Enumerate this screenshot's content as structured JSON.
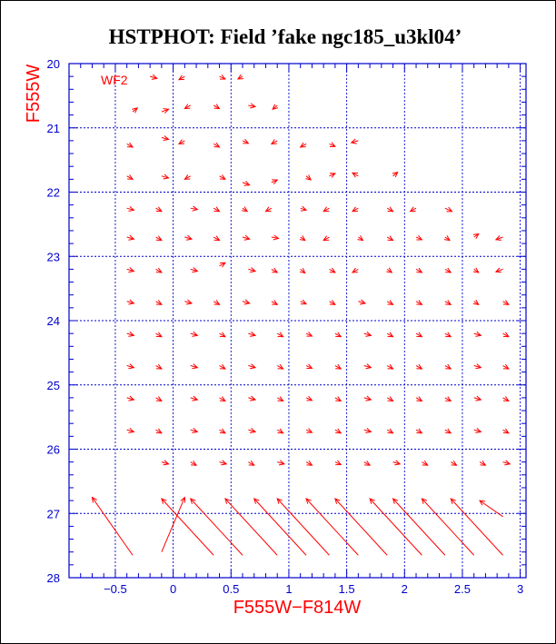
{
  "chart_data": {
    "type": "scatter",
    "title": "HSTPHOT: Field ’fake ngc185_u3kl04’",
    "xlabel": "F555W−F814W",
    "ylabel": "F555W",
    "panel_label": "WF2",
    "xlim": [
      -0.9,
      3.05
    ],
    "ylim": [
      28,
      20
    ],
    "xticks": [
      -0.5,
      0,
      0.5,
      1,
      1.5,
      2,
      2.5,
      3
    ],
    "xtick_labels": [
      "−0.5",
      "0",
      "0.5",
      "1",
      "1.5",
      "2",
      "2.5",
      "3"
    ],
    "yticks": [
      20,
      21,
      22,
      23,
      24,
      25,
      26,
      27,
      28
    ],
    "ytick_labels": [
      "20",
      "21",
      "22",
      "23",
      "24",
      "25",
      "26",
      "27",
      "28"
    ],
    "grid_x": [
      -0.5,
      0,
      0.5,
      1,
      1.5,
      2,
      2.5,
      3
    ],
    "grid_y": [
      21,
      22,
      23,
      24,
      25,
      26,
      27
    ],
    "grid": true,
    "colors": {
      "axes": "#0000cc",
      "data": "#ff0000",
      "title": "#000000",
      "background": "#ffffff"
    },
    "vectors": [
      {
        "x": -0.2,
        "y": 20.2,
        "dx": 0.06,
        "dy": 0.03
      },
      {
        "x": 0.1,
        "y": 20.2,
        "dx": -0.05,
        "dy": 0.05
      },
      {
        "x": 0.4,
        "y": 20.2,
        "dx": 0.05,
        "dy": 0.04
      },
      {
        "x": 0.6,
        "y": 20.2,
        "dx": -0.04,
        "dy": 0.04
      },
      {
        "x": -0.35,
        "y": 20.75,
        "dx": 0.04,
        "dy": -0.06
      },
      {
        "x": -0.1,
        "y": 20.75,
        "dx": 0.06,
        "dy": -0.04
      },
      {
        "x": 0.15,
        "y": 20.65,
        "dx": -0.05,
        "dy": 0.05
      },
      {
        "x": 0.35,
        "y": 20.65,
        "dx": 0.05,
        "dy": 0.05
      },
      {
        "x": 0.65,
        "y": 20.65,
        "dx": 0.06,
        "dy": 0.02
      },
      {
        "x": 0.9,
        "y": 20.65,
        "dx": -0.04,
        "dy": 0.06
      },
      {
        "x": -0.4,
        "y": 21.25,
        "dx": 0.05,
        "dy": 0.05
      },
      {
        "x": -0.1,
        "y": 21.15,
        "dx": 0.06,
        "dy": 0.03
      },
      {
        "x": 0.1,
        "y": 21.2,
        "dx": -0.05,
        "dy": 0.05
      },
      {
        "x": 0.35,
        "y": 21.25,
        "dx": 0.05,
        "dy": 0.05
      },
      {
        "x": 0.6,
        "y": 21.2,
        "dx": 0.05,
        "dy": 0.04
      },
      {
        "x": 0.9,
        "y": 21.2,
        "dx": -0.05,
        "dy": 0.05
      },
      {
        "x": 1.15,
        "y": 21.25,
        "dx": -0.05,
        "dy": 0.05
      },
      {
        "x": 1.35,
        "y": 21.25,
        "dx": 0.05,
        "dy": 0.04
      },
      {
        "x": 1.6,
        "y": 21.2,
        "dx": -0.06,
        "dy": 0.03
      },
      {
        "x": -0.4,
        "y": 21.75,
        "dx": 0.05,
        "dy": 0.05
      },
      {
        "x": -0.1,
        "y": 21.75,
        "dx": 0.06,
        "dy": 0.03
      },
      {
        "x": 0.15,
        "y": 21.75,
        "dx": -0.05,
        "dy": 0.05
      },
      {
        "x": 0.4,
        "y": 21.75,
        "dx": 0.05,
        "dy": 0.05
      },
      {
        "x": 0.6,
        "y": 21.85,
        "dx": 0.06,
        "dy": 0.04
      },
      {
        "x": 0.85,
        "y": 21.85,
        "dx": 0.05,
        "dy": -0.04
      },
      {
        "x": 1.15,
        "y": 21.75,
        "dx": 0.04,
        "dy": 0.06
      },
      {
        "x": 1.35,
        "y": 21.75,
        "dx": 0.05,
        "dy": -0.04
      },
      {
        "x": 1.6,
        "y": 21.75,
        "dx": -0.05,
        "dy": -0.05
      },
      {
        "x": 1.9,
        "y": 21.75,
        "dx": 0.04,
        "dy": -0.06
      },
      {
        "x": -0.4,
        "y": 22.25,
        "dx": 0.06,
        "dy": 0.03
      },
      {
        "x": -0.15,
        "y": 22.25,
        "dx": 0.05,
        "dy": 0.05
      },
      {
        "x": 0.15,
        "y": 22.25,
        "dx": 0.06,
        "dy": 0.02
      },
      {
        "x": 0.35,
        "y": 22.25,
        "dx": 0.05,
        "dy": 0.05
      },
      {
        "x": 0.6,
        "y": 22.25,
        "dx": 0.04,
        "dy": 0.05
      },
      {
        "x": 0.85,
        "y": 22.25,
        "dx": -0.05,
        "dy": 0.05
      },
      {
        "x": 1.1,
        "y": 22.25,
        "dx": 0.05,
        "dy": 0.03
      },
      {
        "x": 1.35,
        "y": 22.25,
        "dx": -0.05,
        "dy": 0.05
      },
      {
        "x": 1.6,
        "y": 22.25,
        "dx": -0.05,
        "dy": 0.05
      },
      {
        "x": 1.85,
        "y": 22.25,
        "dx": 0.05,
        "dy": 0.05
      },
      {
        "x": 2.1,
        "y": 22.25,
        "dx": -0.05,
        "dy": 0.05
      },
      {
        "x": 2.35,
        "y": 22.25,
        "dx": 0.06,
        "dy": 0.05
      },
      {
        "x": -0.4,
        "y": 22.7,
        "dx": 0.06,
        "dy": 0.03
      },
      {
        "x": -0.15,
        "y": 22.7,
        "dx": 0.05,
        "dy": 0.05
      },
      {
        "x": 0.1,
        "y": 22.7,
        "dx": 0.06,
        "dy": 0.03
      },
      {
        "x": 0.35,
        "y": 22.7,
        "dx": 0.05,
        "dy": 0.05
      },
      {
        "x": 0.6,
        "y": 22.7,
        "dx": 0.06,
        "dy": 0.03
      },
      {
        "x": 0.85,
        "y": 22.7,
        "dx": 0.06,
        "dy": 0.02
      },
      {
        "x": 1.1,
        "y": 22.7,
        "dx": 0.04,
        "dy": 0.05
      },
      {
        "x": 1.35,
        "y": 22.7,
        "dx": -0.05,
        "dy": 0.05
      },
      {
        "x": 1.6,
        "y": 22.7,
        "dx": 0.04,
        "dy": 0.05
      },
      {
        "x": 1.85,
        "y": 22.7,
        "dx": 0.05,
        "dy": 0.05
      },
      {
        "x": 2.1,
        "y": 22.7,
        "dx": 0.05,
        "dy": 0.04
      },
      {
        "x": 2.35,
        "y": 22.7,
        "dx": 0.04,
        "dy": 0.05
      },
      {
        "x": 2.6,
        "y": 22.7,
        "dx": 0.04,
        "dy": -0.05
      },
      {
        "x": 2.85,
        "y": 22.7,
        "dx": -0.06,
        "dy": 0.04
      },
      {
        "x": -0.4,
        "y": 23.2,
        "dx": 0.06,
        "dy": 0.03
      },
      {
        "x": -0.15,
        "y": 23.2,
        "dx": 0.05,
        "dy": 0.05
      },
      {
        "x": 0.15,
        "y": 23.2,
        "dx": 0.06,
        "dy": 0.03
      },
      {
        "x": 0.4,
        "y": 23.15,
        "dx": 0.05,
        "dy": -0.05
      },
      {
        "x": 0.65,
        "y": 23.2,
        "dx": 0.06,
        "dy": 0.03
      },
      {
        "x": 0.85,
        "y": 23.2,
        "dx": 0.05,
        "dy": 0.05
      },
      {
        "x": 1.1,
        "y": 23.2,
        "dx": 0.04,
        "dy": 0.06
      },
      {
        "x": 1.35,
        "y": 23.2,
        "dx": 0.05,
        "dy": 0.05
      },
      {
        "x": 1.6,
        "y": 23.2,
        "dx": -0.05,
        "dy": 0.05
      },
      {
        "x": 1.85,
        "y": 23.2,
        "dx": 0.04,
        "dy": 0.05
      },
      {
        "x": 2.1,
        "y": 23.2,
        "dx": 0.05,
        "dy": 0.05
      },
      {
        "x": 2.35,
        "y": 23.2,
        "dx": 0.05,
        "dy": 0.05
      },
      {
        "x": 2.6,
        "y": 23.2,
        "dx": 0.04,
        "dy": 0.05
      },
      {
        "x": 2.85,
        "y": 23.2,
        "dx": -0.06,
        "dy": 0.04
      },
      {
        "x": -0.4,
        "y": 23.7,
        "dx": 0.06,
        "dy": 0.03
      },
      {
        "x": -0.15,
        "y": 23.7,
        "dx": 0.05,
        "dy": 0.05
      },
      {
        "x": 0.1,
        "y": 23.7,
        "dx": 0.06,
        "dy": 0.03
      },
      {
        "x": 0.35,
        "y": 23.7,
        "dx": 0.05,
        "dy": 0.05
      },
      {
        "x": 0.6,
        "y": 23.7,
        "dx": 0.06,
        "dy": 0.03
      },
      {
        "x": 0.85,
        "y": 23.7,
        "dx": 0.05,
        "dy": 0.05
      },
      {
        "x": 1.1,
        "y": 23.7,
        "dx": 0.05,
        "dy": 0.04
      },
      {
        "x": 1.35,
        "y": 23.7,
        "dx": 0.05,
        "dy": 0.05
      },
      {
        "x": 1.6,
        "y": 23.7,
        "dx": 0.06,
        "dy": 0.03
      },
      {
        "x": 1.85,
        "y": 23.7,
        "dx": 0.05,
        "dy": 0.05
      },
      {
        "x": 2.1,
        "y": 23.7,
        "dx": 0.05,
        "dy": 0.05
      },
      {
        "x": 2.35,
        "y": 23.7,
        "dx": 0.05,
        "dy": 0.05
      },
      {
        "x": 2.6,
        "y": 23.7,
        "dx": 0.04,
        "dy": 0.05
      },
      {
        "x": 2.85,
        "y": 23.7,
        "dx": 0.05,
        "dy": 0.05
      },
      {
        "x": -0.4,
        "y": 24.2,
        "dx": 0.06,
        "dy": 0.03
      },
      {
        "x": -0.15,
        "y": 24.2,
        "dx": 0.05,
        "dy": 0.05
      },
      {
        "x": 0.15,
        "y": 24.2,
        "dx": 0.06,
        "dy": 0.03
      },
      {
        "x": 0.4,
        "y": 24.2,
        "dx": 0.05,
        "dy": 0.05
      },
      {
        "x": 0.65,
        "y": 24.2,
        "dx": 0.06,
        "dy": 0.03
      },
      {
        "x": 0.9,
        "y": 24.2,
        "dx": 0.05,
        "dy": 0.05
      },
      {
        "x": 1.15,
        "y": 24.2,
        "dx": 0.05,
        "dy": 0.04
      },
      {
        "x": 1.4,
        "y": 24.2,
        "dx": 0.05,
        "dy": 0.05
      },
      {
        "x": 1.65,
        "y": 24.2,
        "dx": 0.06,
        "dy": 0.03
      },
      {
        "x": 1.85,
        "y": 24.2,
        "dx": 0.05,
        "dy": 0.05
      },
      {
        "x": 2.1,
        "y": 24.2,
        "dx": 0.05,
        "dy": 0.05
      },
      {
        "x": 2.35,
        "y": 24.2,
        "dx": 0.05,
        "dy": 0.05
      },
      {
        "x": 2.6,
        "y": 24.2,
        "dx": 0.06,
        "dy": 0.03
      },
      {
        "x": 2.85,
        "y": 24.2,
        "dx": 0.05,
        "dy": 0.05
      },
      {
        "x": -0.4,
        "y": 24.7,
        "dx": 0.06,
        "dy": 0.03
      },
      {
        "x": -0.15,
        "y": 24.7,
        "dx": 0.05,
        "dy": 0.05
      },
      {
        "x": 0.15,
        "y": 24.7,
        "dx": 0.06,
        "dy": 0.03
      },
      {
        "x": 0.4,
        "y": 24.7,
        "dx": 0.05,
        "dy": 0.05
      },
      {
        "x": 0.65,
        "y": 24.7,
        "dx": 0.06,
        "dy": 0.03
      },
      {
        "x": 0.9,
        "y": 24.7,
        "dx": 0.05,
        "dy": 0.05
      },
      {
        "x": 1.15,
        "y": 24.7,
        "dx": 0.05,
        "dy": 0.04
      },
      {
        "x": 1.4,
        "y": 24.7,
        "dx": 0.05,
        "dy": 0.05
      },
      {
        "x": 1.65,
        "y": 24.7,
        "dx": 0.06,
        "dy": 0.03
      },
      {
        "x": 1.85,
        "y": 24.7,
        "dx": 0.05,
        "dy": 0.05
      },
      {
        "x": 2.1,
        "y": 24.7,
        "dx": 0.05,
        "dy": 0.05
      },
      {
        "x": 2.35,
        "y": 24.7,
        "dx": 0.05,
        "dy": 0.05
      },
      {
        "x": 2.6,
        "y": 24.7,
        "dx": 0.06,
        "dy": 0.03
      },
      {
        "x": 2.85,
        "y": 24.7,
        "dx": 0.05,
        "dy": 0.05
      },
      {
        "x": -0.4,
        "y": 25.2,
        "dx": 0.06,
        "dy": 0.03
      },
      {
        "x": -0.15,
        "y": 25.2,
        "dx": 0.05,
        "dy": 0.05
      },
      {
        "x": 0.15,
        "y": 25.2,
        "dx": 0.06,
        "dy": 0.03
      },
      {
        "x": 0.4,
        "y": 25.2,
        "dx": 0.05,
        "dy": 0.05
      },
      {
        "x": 0.65,
        "y": 25.2,
        "dx": 0.06,
        "dy": 0.03
      },
      {
        "x": 0.9,
        "y": 25.2,
        "dx": 0.05,
        "dy": 0.05
      },
      {
        "x": 1.15,
        "y": 25.2,
        "dx": 0.05,
        "dy": 0.04
      },
      {
        "x": 1.4,
        "y": 25.2,
        "dx": 0.05,
        "dy": 0.05
      },
      {
        "x": 1.65,
        "y": 25.2,
        "dx": 0.06,
        "dy": 0.03
      },
      {
        "x": 1.85,
        "y": 25.2,
        "dx": 0.05,
        "dy": 0.05
      },
      {
        "x": 2.1,
        "y": 25.2,
        "dx": 0.05,
        "dy": 0.05
      },
      {
        "x": 2.35,
        "y": 25.2,
        "dx": 0.05,
        "dy": 0.05
      },
      {
        "x": 2.6,
        "y": 25.2,
        "dx": 0.06,
        "dy": 0.03
      },
      {
        "x": 2.85,
        "y": 25.2,
        "dx": 0.05,
        "dy": 0.05
      },
      {
        "x": -0.4,
        "y": 25.7,
        "dx": 0.06,
        "dy": 0.03
      },
      {
        "x": -0.15,
        "y": 25.7,
        "dx": 0.05,
        "dy": 0.05
      },
      {
        "x": 0.15,
        "y": 25.7,
        "dx": 0.06,
        "dy": 0.03
      },
      {
        "x": 0.4,
        "y": 25.7,
        "dx": 0.05,
        "dy": 0.05
      },
      {
        "x": 0.65,
        "y": 25.7,
        "dx": 0.06,
        "dy": 0.03
      },
      {
        "x": 0.9,
        "y": 25.7,
        "dx": 0.05,
        "dy": 0.05
      },
      {
        "x": 1.15,
        "y": 25.7,
        "dx": 0.05,
        "dy": 0.04
      },
      {
        "x": 1.4,
        "y": 25.7,
        "dx": 0.05,
        "dy": 0.05
      },
      {
        "x": 1.65,
        "y": 25.7,
        "dx": 0.06,
        "dy": 0.03
      },
      {
        "x": 1.85,
        "y": 25.7,
        "dx": 0.05,
        "dy": 0.05
      },
      {
        "x": 2.1,
        "y": 25.7,
        "dx": 0.05,
        "dy": 0.05
      },
      {
        "x": 2.35,
        "y": 25.7,
        "dx": 0.05,
        "dy": 0.05
      },
      {
        "x": 2.6,
        "y": 25.7,
        "dx": 0.06,
        "dy": 0.03
      },
      {
        "x": 2.85,
        "y": 25.7,
        "dx": 0.05,
        "dy": 0.05
      },
      {
        "x": -0.1,
        "y": 26.2,
        "dx": 0.06,
        "dy": 0.03
      },
      {
        "x": 0.15,
        "y": 26.2,
        "dx": 0.05,
        "dy": 0.05
      },
      {
        "x": 0.4,
        "y": 26.2,
        "dx": 0.06,
        "dy": 0.03
      },
      {
        "x": 0.65,
        "y": 26.2,
        "dx": 0.05,
        "dy": 0.05
      },
      {
        "x": 0.9,
        "y": 26.2,
        "dx": 0.06,
        "dy": 0.03
      },
      {
        "x": 1.15,
        "y": 26.2,
        "dx": 0.05,
        "dy": 0.05
      },
      {
        "x": 1.4,
        "y": 26.2,
        "dx": 0.05,
        "dy": 0.04
      },
      {
        "x": 1.65,
        "y": 26.2,
        "dx": 0.05,
        "dy": 0.05
      },
      {
        "x": 1.9,
        "y": 26.2,
        "dx": 0.06,
        "dy": 0.03
      },
      {
        "x": 2.15,
        "y": 26.2,
        "dx": 0.05,
        "dy": 0.05
      },
      {
        "x": 2.4,
        "y": 26.2,
        "dx": 0.05,
        "dy": 0.05
      },
      {
        "x": 2.65,
        "y": 26.2,
        "dx": 0.05,
        "dy": 0.05
      },
      {
        "x": 2.85,
        "y": 26.2,
        "dx": 0.06,
        "dy": 0.03
      },
      {
        "x": -0.35,
        "y": 27.65,
        "dx": -0.35,
        "dy": -0.9
      },
      {
        "x": -0.1,
        "y": 27.6,
        "dx": 0.2,
        "dy": -0.85
      },
      {
        "x": 0.35,
        "y": 27.65,
        "dx": -0.45,
        "dy": -0.88
      },
      {
        "x": 0.6,
        "y": 27.65,
        "dx": -0.45,
        "dy": -0.88
      },
      {
        "x": 0.9,
        "y": 27.65,
        "dx": -0.45,
        "dy": -0.88
      },
      {
        "x": 1.15,
        "y": 27.65,
        "dx": -0.45,
        "dy": -0.88
      },
      {
        "x": 1.35,
        "y": 27.65,
        "dx": -0.45,
        "dy": -0.88
      },
      {
        "x": 1.6,
        "y": 27.65,
        "dx": -0.45,
        "dy": -0.88
      },
      {
        "x": 1.85,
        "y": 27.65,
        "dx": -0.45,
        "dy": -0.88
      },
      {
        "x": 2.15,
        "y": 27.65,
        "dx": -0.45,
        "dy": -0.88
      },
      {
        "x": 2.35,
        "y": 27.65,
        "dx": -0.45,
        "dy": -0.88
      },
      {
        "x": 2.6,
        "y": 27.65,
        "dx": -0.45,
        "dy": -0.88
      },
      {
        "x": 2.85,
        "y": 27.65,
        "dx": -0.45,
        "dy": -0.88
      },
      {
        "x": 2.85,
        "y": 27.05,
        "dx": -0.2,
        "dy": -0.25
      }
    ]
  }
}
